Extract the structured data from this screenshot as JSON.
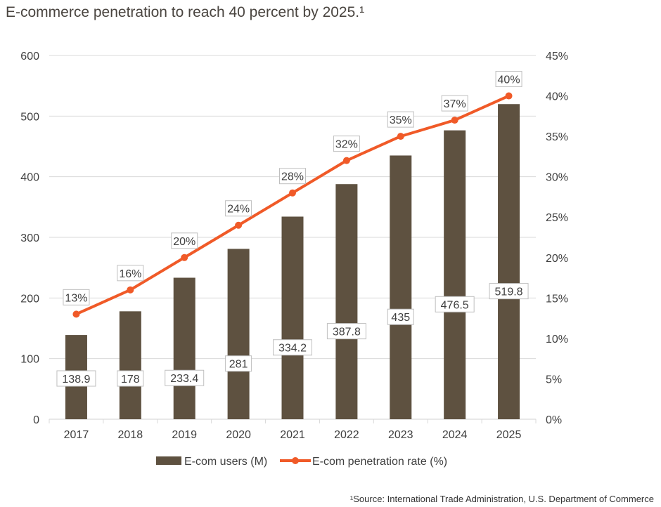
{
  "chart_data": {
    "type": "bar",
    "title": "E-commerce penetration to reach 40 percent by 2025.¹",
    "categories": [
      "2017",
      "2018",
      "2019",
      "2020",
      "2021",
      "2022",
      "2023",
      "2024",
      "2025"
    ],
    "series": [
      {
        "name": "E-com users (M)",
        "type": "bar",
        "axis": "left",
        "values": [
          138.9,
          178,
          233.4,
          281,
          334.2,
          387.8,
          435,
          476.5,
          519.8
        ],
        "labels": [
          "138.9",
          "178",
          "233.4",
          "281",
          "334.2",
          "387.8",
          "435",
          "476.5",
          "519.8"
        ]
      },
      {
        "name": "E-com penetration rate (%)",
        "type": "line",
        "axis": "right",
        "values": [
          13,
          16,
          20,
          24,
          28,
          32,
          35,
          37,
          40
        ],
        "labels": [
          "13%",
          "16%",
          "20%",
          "24%",
          "28%",
          "32%",
          "35%",
          "37%",
          "40%"
        ]
      }
    ],
    "y_left": {
      "ylim": [
        0,
        600
      ],
      "ticks": [
        "0",
        "100",
        "200",
        "300",
        "400",
        "500",
        "600"
      ]
    },
    "y_right": {
      "ylim": [
        0,
        45
      ],
      "ticks": [
        "0%",
        "5%",
        "10%",
        "15%",
        "20%",
        "25%",
        "30%",
        "35%",
        "40%",
        "45%"
      ]
    },
    "grid": true,
    "legend_position": "bottom",
    "colors": {
      "bar": "#5e5140",
      "line": "#f05a28",
      "grid": "#d9d9d9",
      "text": "#404040",
      "label_border": "#bfbfbf"
    }
  },
  "footnote": "¹Source:  International Trade Administration, U.S. Department of Commerce"
}
